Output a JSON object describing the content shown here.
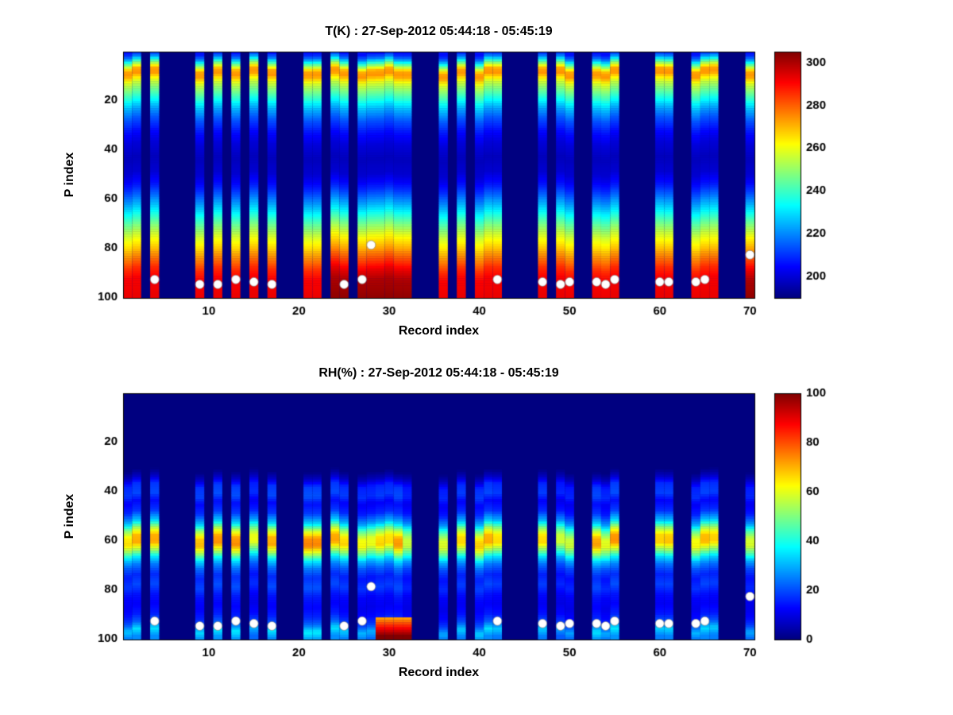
{
  "figure": {
    "background": "#ffffff",
    "frame_color": "#000000",
    "dot_color": "#ffffff"
  },
  "chart_data": [
    {
      "type": "heatmap",
      "title": "T(K) : 27-Sep-2012 05:44:18 - 05:45:19",
      "xlabel": "Record index",
      "ylabel": "P index",
      "colormap": "jet",
      "x_range": [
        0.5,
        70.5
      ],
      "y_range": [
        0.5,
        100.5
      ],
      "y_axis_reversed": true,
      "x_ticks": [
        10,
        20,
        30,
        40,
        50,
        60,
        70
      ],
      "y_ticks": [
        20,
        40,
        60,
        80,
        100
      ],
      "value_range": [
        190,
        305
      ],
      "colorbar_ticks": [
        200,
        220,
        240,
        260,
        280,
        300
      ],
      "background_value": 190,
      "records_present": [
        1,
        2,
        4,
        9,
        11,
        13,
        15,
        17,
        21,
        22,
        24,
        25,
        27,
        28,
        29,
        30,
        31,
        32,
        36,
        38,
        40,
        41,
        42,
        47,
        49,
        50,
        53,
        54,
        55,
        60,
        61,
        64,
        65,
        66,
        70
      ],
      "profile_points": [
        [
          1,
          206
        ],
        [
          3,
          218
        ],
        [
          5,
          240
        ],
        [
          8,
          272
        ],
        [
          10,
          274
        ],
        [
          13,
          258
        ],
        [
          16,
          248
        ],
        [
          20,
          236
        ],
        [
          24,
          224
        ],
        [
          28,
          214
        ],
        [
          33,
          206
        ],
        [
          38,
          200
        ],
        [
          44,
          197
        ],
        [
          50,
          199
        ],
        [
          56,
          208
        ],
        [
          60,
          217
        ],
        [
          65,
          230
        ],
        [
          70,
          243
        ],
        [
          75,
          256
        ],
        [
          80,
          266
        ],
        [
          85,
          277
        ],
        [
          89,
          286
        ],
        [
          93,
          291
        ],
        [
          100,
          293
        ]
      ],
      "warm_records": [
        24,
        25,
        27,
        28,
        29,
        30,
        31,
        32,
        70
      ],
      "warm_offset_max": 10,
      "white_dots": [
        [
          4,
          93
        ],
        [
          9,
          95
        ],
        [
          11,
          95
        ],
        [
          13,
          93
        ],
        [
          15,
          94
        ],
        [
          17,
          95
        ],
        [
          25,
          95
        ],
        [
          27,
          93
        ],
        [
          28,
          79
        ],
        [
          42,
          93
        ],
        [
          47,
          94
        ],
        [
          49,
          95
        ],
        [
          50,
          94
        ],
        [
          53,
          94
        ],
        [
          54,
          95
        ],
        [
          55,
          93
        ],
        [
          60,
          94
        ],
        [
          61,
          94
        ],
        [
          64,
          94
        ],
        [
          65,
          93
        ],
        [
          70,
          83
        ]
      ]
    },
    {
      "type": "heatmap",
      "title": "RH(%) : 27-Sep-2012 05:44:18 - 05:45:19",
      "xlabel": "Record index",
      "ylabel": "P index",
      "colormap": "jet",
      "x_range": [
        0.5,
        70.5
      ],
      "y_range": [
        0.5,
        100.5
      ],
      "y_axis_reversed": true,
      "x_ticks": [
        10,
        20,
        30,
        40,
        50,
        60,
        70
      ],
      "y_ticks": [
        20,
        40,
        60,
        80,
        100
      ],
      "value_range": [
        0,
        100
      ],
      "colorbar_ticks": [
        0,
        20,
        40,
        60,
        80,
        100
      ],
      "background_value": 0,
      "records_present": [
        1,
        2,
        4,
        9,
        11,
        13,
        15,
        17,
        21,
        22,
        24,
        25,
        27,
        28,
        29,
        30,
        31,
        32,
        36,
        38,
        40,
        41,
        42,
        47,
        49,
        50,
        53,
        54,
        55,
        60,
        61,
        64,
        65,
        66,
        70
      ],
      "profile_points": [
        [
          1,
          0
        ],
        [
          32,
          0
        ],
        [
          35,
          6
        ],
        [
          38,
          16
        ],
        [
          42,
          18
        ],
        [
          45,
          12
        ],
        [
          49,
          16
        ],
        [
          53,
          30
        ],
        [
          56,
          50
        ],
        [
          59,
          64
        ],
        [
          62,
          65
        ],
        [
          65,
          50
        ],
        [
          68,
          32
        ],
        [
          71,
          22
        ],
        [
          75,
          15
        ],
        [
          79,
          18
        ],
        [
          83,
          13
        ],
        [
          87,
          11
        ],
        [
          91,
          14
        ],
        [
          94,
          20
        ],
        [
          97,
          32
        ],
        [
          100,
          24
        ]
      ],
      "wet_records": [
        29,
        30,
        31,
        32
      ],
      "wet_surface_value": 85,
      "white_dots": [
        [
          4,
          93
        ],
        [
          9,
          95
        ],
        [
          11,
          95
        ],
        [
          13,
          93
        ],
        [
          15,
          94
        ],
        [
          17,
          95
        ],
        [
          25,
          95
        ],
        [
          27,
          93
        ],
        [
          28,
          79
        ],
        [
          42,
          93
        ],
        [
          47,
          94
        ],
        [
          49,
          95
        ],
        [
          50,
          94
        ],
        [
          53,
          94
        ],
        [
          54,
          95
        ],
        [
          55,
          93
        ],
        [
          60,
          94
        ],
        [
          61,
          94
        ],
        [
          64,
          94
        ],
        [
          65,
          93
        ],
        [
          70,
          83
        ]
      ]
    }
  ]
}
